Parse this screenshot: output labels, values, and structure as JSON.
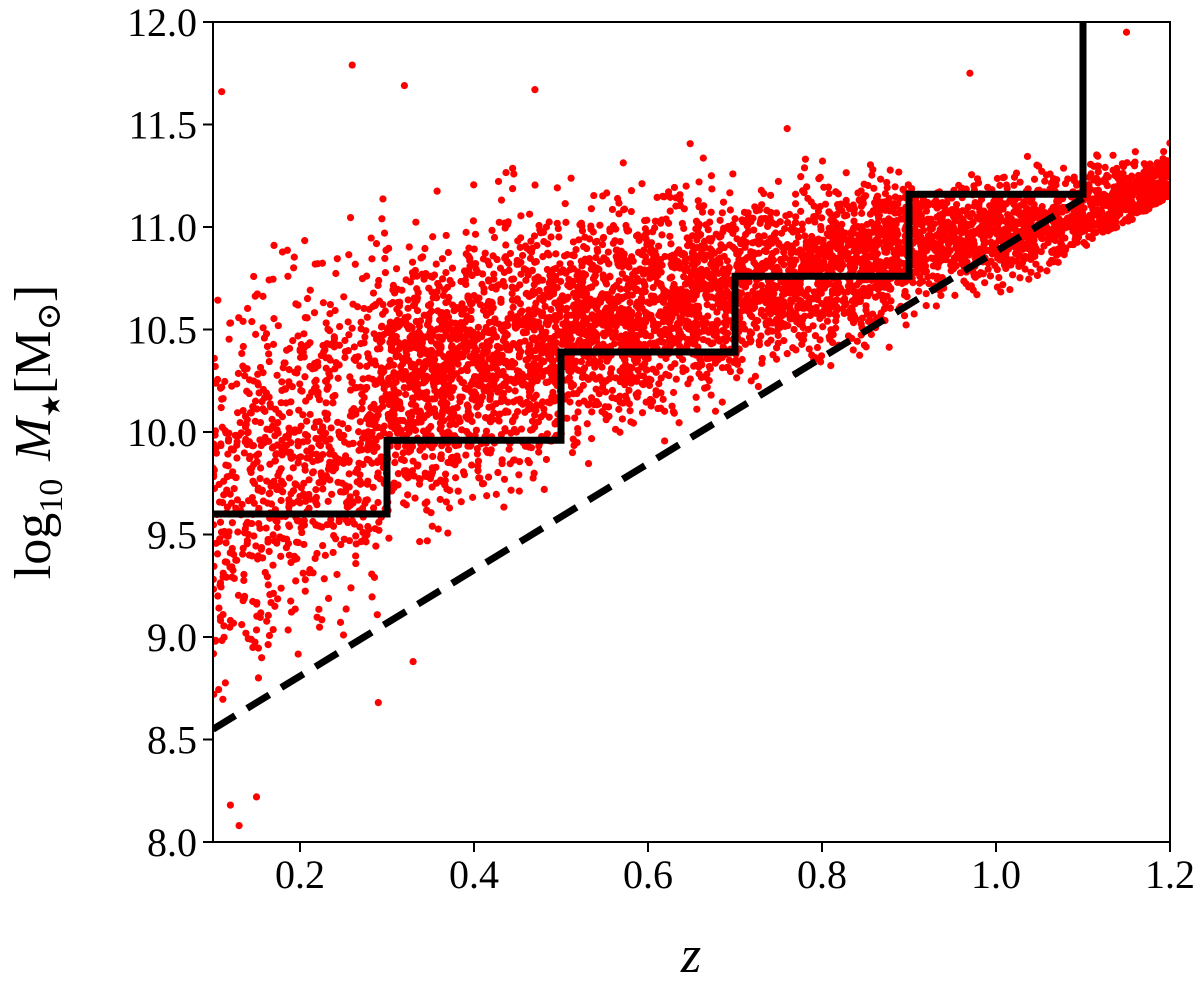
{
  "chart_data": {
    "type": "scatter",
    "title": "",
    "xlabel": "z",
    "ylabel": {
      "prefix": "log",
      "prefix_subscript": "10",
      "symbol": "M",
      "symbol_subscript": "★",
      "unit": "[M",
      "unit_subscript": "⊙",
      "unit_close": "]"
    },
    "xlim": [
      0.1,
      1.2
    ],
    "ylim": [
      8.0,
      12.0
    ],
    "xticks": [
      0.2,
      0.4,
      0.6,
      0.8,
      1.0,
      1.2
    ],
    "xtick_labels": [
      "0.2",
      "0.4",
      "0.6",
      "0.8",
      "1.0",
      "1.2"
    ],
    "yticks": [
      8.0,
      8.5,
      9.0,
      9.5,
      10.0,
      10.5,
      11.0,
      11.5,
      12.0
    ],
    "ytick_labels": [
      "8.0",
      "8.5",
      "9.0",
      "9.5",
      "10.0",
      "10.5",
      "11.0",
      "11.5",
      "12.0"
    ],
    "grid": false,
    "legend": "none",
    "scatter_color": "#ff0000",
    "line_color": "#000000",
    "scatter_clusters": [
      {
        "x_range": [
          0.1,
          0.3
        ],
        "y_center_start": 9.6,
        "y_center_end": 10.2,
        "y_spread": 0.75,
        "count": 900
      },
      {
        "x_range": [
          0.3,
          0.5
        ],
        "y_center_start": 10.2,
        "y_center_end": 10.5,
        "y_spread": 0.55,
        "count": 1400
      },
      {
        "x_range": [
          0.5,
          0.7
        ],
        "y_center_start": 10.5,
        "y_center_end": 10.7,
        "y_spread": 0.45,
        "count": 1300
      },
      {
        "x_range": [
          0.7,
          0.9
        ],
        "y_center_start": 10.7,
        "y_center_end": 10.9,
        "y_spread": 0.35,
        "count": 1200
      },
      {
        "x_range": [
          0.9,
          1.2
        ],
        "y_center_start": 10.9,
        "y_center_end": 11.15,
        "y_spread": 0.22,
        "count": 1300
      }
    ],
    "scatter_outliers": [
      {
        "x": 0.11,
        "y": 11.66
      },
      {
        "x": 0.26,
        "y": 11.79
      },
      {
        "x": 0.32,
        "y": 11.69
      },
      {
        "x": 0.47,
        "y": 11.67
      },
      {
        "x": 0.76,
        "y": 11.48
      },
      {
        "x": 0.97,
        "y": 11.75
      },
      {
        "x": 1.15,
        "y": 11.95
      },
      {
        "x": 0.12,
        "y": 8.18
      },
      {
        "x": 0.15,
        "y": 8.22
      },
      {
        "x": 0.13,
        "y": 8.08
      },
      {
        "x": 0.33,
        "y": 8.88
      },
      {
        "x": 0.29,
        "y": 8.68
      }
    ],
    "series": [
      {
        "style": "solid-step",
        "x": [
          0.1,
          0.3,
          0.3,
          0.5,
          0.5,
          0.7,
          0.7,
          0.9,
          0.9,
          1.1,
          1.1
        ],
        "y": [
          9.6,
          9.6,
          9.96,
          9.96,
          10.39,
          10.39,
          10.76,
          10.76,
          11.16,
          11.16,
          12.0
        ]
      },
      {
        "style": "dashed",
        "x": [
          0.1,
          1.1
        ],
        "y": [
          8.55,
          11.14
        ]
      }
    ]
  }
}
